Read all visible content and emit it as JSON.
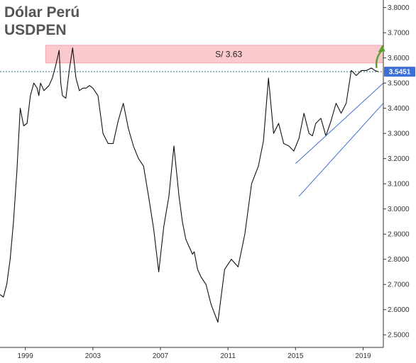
{
  "title": "Dólar Perú",
  "subtitle": "USDPEN",
  "colors": {
    "line": "#111111",
    "channel": "#3d6fd6",
    "zone_fill": "#f9c9ce",
    "zone_stroke": "#f2a6ae",
    "price_tag": "#3d6fd6",
    "dotted_level": "#2a6f8a",
    "arrow": "#5aa02c",
    "axis": "#333333"
  },
  "chart_data": {
    "type": "line",
    "series": [
      {
        "x": [
          1997.5,
          1997.7,
          1997.9,
          1998.1,
          1998.3,
          1998.5,
          1998.7,
          1998.9,
          1999.1,
          1999.3,
          1999.5,
          1999.7,
          1999.8,
          1999.9,
          2000.1,
          2000.4,
          2000.6,
          2000.8,
          2001.0,
          2001.1,
          2001.2,
          2001.4,
          2001.6,
          2001.8,
          2002.0,
          2002.2,
          2002.4,
          2002.6,
          2002.8,
          2003.0,
          2003.3,
          2003.6,
          2003.9,
          2004.2,
          2004.5,
          2004.8,
          2005.1,
          2005.4,
          2005.7,
          2006.0,
          2006.3,
          2006.6,
          2006.9,
          2007.2,
          2007.5,
          2007.8,
          2008.1,
          2008.3,
          2008.5,
          2008.7,
          2008.9,
          2009.0,
          2009.2,
          2009.4,
          2009.7,
          2010.0,
          2010.4,
          2010.8,
          2011.2,
          2011.6,
          2012.0,
          2012.4,
          2012.8,
          2013.1,
          2013.4,
          2013.7,
          2014.0,
          2014.3,
          2014.6,
          2014.9,
          2015.2,
          2015.5,
          2015.8,
          2016.0,
          2016.2,
          2016.5,
          2016.8,
          2017.1,
          2017.4,
          2017.7,
          2018.0,
          2018.3,
          2018.6,
          2018.9,
          2019.2,
          2019.5,
          2019.7,
          2019.9
        ],
        "y": [
          2.66,
          2.65,
          2.7,
          2.8,
          2.95,
          3.15,
          3.4,
          3.33,
          3.34,
          3.45,
          3.5,
          3.48,
          3.45,
          3.5,
          3.47,
          3.49,
          3.52,
          3.57,
          3.63,
          3.5,
          3.45,
          3.44,
          3.55,
          3.64,
          3.52,
          3.47,
          3.48,
          3.48,
          3.49,
          3.48,
          3.45,
          3.3,
          3.26,
          3.26,
          3.35,
          3.42,
          3.32,
          3.25,
          3.2,
          3.17,
          3.05,
          2.92,
          2.75,
          2.93,
          3.05,
          3.25,
          3.05,
          2.95,
          2.88,
          2.85,
          2.82,
          2.83,
          2.76,
          2.73,
          2.7,
          2.62,
          2.55,
          2.76,
          2.8,
          2.77,
          2.9,
          3.1,
          3.17,
          3.27,
          3.52,
          3.3,
          3.34,
          3.26,
          3.25,
          3.23,
          3.28,
          3.38,
          3.3,
          3.29,
          3.34,
          3.36,
          3.29,
          3.35,
          3.42,
          3.38,
          3.42,
          3.55,
          3.53,
          3.55,
          3.55,
          3.56,
          3.55,
          3.545
        ]
      }
    ],
    "xlim": [
      1997.5,
      2020.2
    ],
    "ylim": [
      2.45,
      3.83
    ],
    "xticks": [
      1999,
      2003,
      2007,
      2011,
      2015,
      2019
    ],
    "xtick_labels": [
      "1999",
      "2003",
      "2007",
      "2011",
      "2015",
      "2019"
    ],
    "yticks": [
      2.5,
      2.6,
      2.7,
      2.8,
      2.9,
      3.0,
      3.1,
      3.2,
      3.3,
      3.4,
      3.5,
      3.6,
      3.7,
      3.8
    ],
    "ytick_labels": [
      "2.5000",
      "2.6000",
      "2.7000",
      "2.8000",
      "2.9000",
      "3.0000",
      "3.1000",
      "3.2000",
      "3.3000",
      "3.4000",
      "3.5000",
      "3.6000",
      "3.7000",
      "3.8000"
    ],
    "resistance_zone": {
      "y_low": 3.58,
      "y_high": 3.65,
      "x_start": 2000.2,
      "x_end": 2020.2,
      "label": "S/ 3.63"
    },
    "last_price": {
      "value": 3.5451,
      "label": "3.5451"
    },
    "channel": {
      "upper": [
        [
          2015.0,
          3.18
        ],
        [
          2020.2,
          3.5
        ]
      ],
      "lower": [
        [
          2015.2,
          3.05
        ],
        [
          2020.2,
          3.42
        ]
      ]
    },
    "arrow_up": {
      "x_from": 2019.8,
      "x_to": 2020.1,
      "y_from": 3.56,
      "y_to": 3.64
    },
    "legend": "none",
    "grid": false
  }
}
